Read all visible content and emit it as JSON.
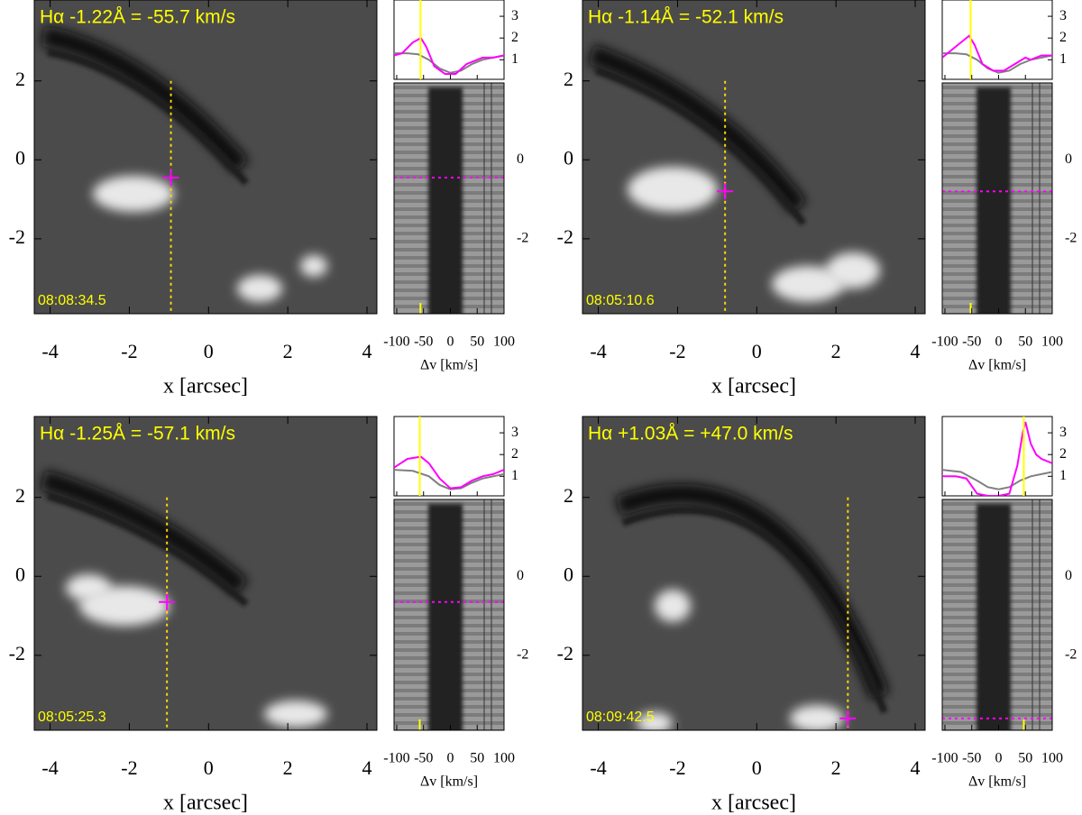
{
  "axes": {
    "x_label": "x [arcsec]",
    "dv_label": "Δv [km/s]",
    "x_range": [
      -4.4,
      4.25
    ],
    "y_range": [
      -3.9,
      4.05
    ],
    "x_ticks": [
      -4,
      -2,
      0,
      2,
      4
    ],
    "y_ticks": [
      -2,
      0,
      2
    ],
    "dv_range": [
      -105,
      100
    ],
    "dv_ticks": [
      -100,
      -50,
      0,
      50,
      100
    ],
    "intensity_range": [
      0.1,
      3.75
    ],
    "intensity_ticks": [
      1,
      2,
      3
    ]
  },
  "panels": [
    {
      "title": "Hα -1.22Å = -55.7 km/s",
      "time": "08:08:34.5",
      "velocity": -55.7,
      "cut_x": -0.95,
      "point_y": -0.45,
      "profiles": [
        {
          "color": "#ff00ff",
          "dv": [
            -105,
            -90,
            -70,
            -55,
            -45,
            -30,
            -10,
            10,
            30,
            50,
            60,
            80,
            100
          ],
          "intensity": [
            1.2,
            1.3,
            1.8,
            2.0,
            1.6,
            0.7,
            0.35,
            0.35,
            0.8,
            1.0,
            1.1,
            1.1,
            1.2
          ]
        },
        {
          "color": "#808080",
          "dv": [
            -105,
            -80,
            -60,
            -40,
            -20,
            0,
            20,
            40,
            60,
            80,
            100
          ],
          "intensity": [
            1.3,
            1.3,
            1.25,
            1.0,
            0.6,
            0.4,
            0.5,
            0.8,
            1.0,
            1.1,
            1.2
          ]
        }
      ]
    },
    {
      "title": "Hα -1.14Å = -52.1 km/s",
      "time": "08:05:10.6",
      "velocity": -52.1,
      "cut_x": -0.8,
      "point_y": -0.8,
      "profiles": [
        {
          "color": "#ff00ff",
          "dv": [
            -105,
            -90,
            -70,
            -55,
            -45,
            -30,
            -10,
            10,
            30,
            50,
            60,
            80,
            100
          ],
          "intensity": [
            1.1,
            1.4,
            1.8,
            2.1,
            1.7,
            0.8,
            0.5,
            0.5,
            0.8,
            1.1,
            1.0,
            1.2,
            1.2
          ]
        },
        {
          "color": "#808080",
          "dv": [
            -105,
            -80,
            -60,
            -40,
            -20,
            0,
            20,
            40,
            60,
            80,
            100
          ],
          "intensity": [
            1.3,
            1.3,
            1.25,
            1.0,
            0.6,
            0.4,
            0.5,
            0.8,
            1.0,
            1.1,
            1.2
          ]
        }
      ]
    },
    {
      "title": "Hα -1.25Å = -57.1 km/s",
      "time": "08:05:25.3",
      "velocity": -57.1,
      "cut_x": -1.05,
      "point_y": -0.65,
      "profiles": [
        {
          "color": "#ff00ff",
          "dv": [
            -105,
            -80,
            -55,
            -40,
            -20,
            0,
            20,
            40,
            60,
            80,
            100
          ],
          "intensity": [
            1.4,
            1.8,
            1.9,
            1.6,
            0.9,
            0.45,
            0.5,
            0.8,
            1.0,
            1.1,
            1.3
          ]
        },
        {
          "color": "#808080",
          "dv": [
            -105,
            -70,
            -40,
            -20,
            0,
            20,
            40,
            60,
            80,
            100
          ],
          "intensity": [
            1.3,
            1.25,
            1.0,
            0.6,
            0.4,
            0.45,
            0.7,
            0.9,
            1.0,
            1.1
          ]
        }
      ]
    },
    {
      "title": "Hα +1.03Å = +47.0 km/s",
      "time": "08:09:42.5",
      "velocity": 47.0,
      "cut_x": 2.3,
      "point_y": -3.6,
      "profiles": [
        {
          "color": "#ff00ff",
          "dv": [
            -105,
            -80,
            -60,
            -40,
            -20,
            0,
            20,
            35,
            45,
            50,
            60,
            70,
            80,
            100
          ],
          "intensity": [
            1.0,
            1.0,
            0.9,
            0.2,
            0.1,
            0.1,
            0.2,
            1.5,
            3.0,
            3.5,
            2.5,
            2.0,
            1.8,
            1.6
          ]
        },
        {
          "color": "#808080",
          "dv": [
            -105,
            -70,
            -40,
            -20,
            0,
            20,
            40,
            60,
            80,
            100
          ],
          "intensity": [
            1.3,
            1.2,
            0.8,
            0.5,
            0.4,
            0.5,
            0.8,
            1.0,
            1.1,
            1.2
          ]
        }
      ]
    }
  ]
}
